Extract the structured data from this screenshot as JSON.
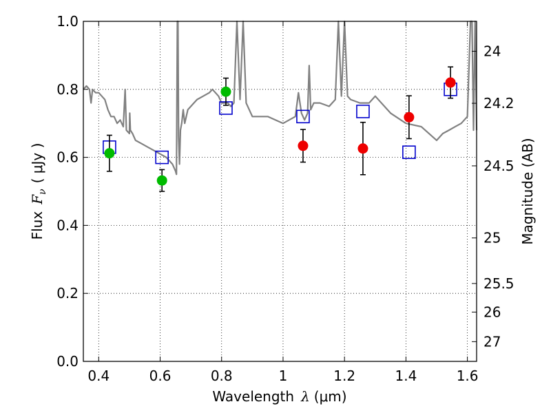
{
  "chart_data": {
    "type": "scatter",
    "xlabel": "Wavelength",
    "xlabel_symbol": "λ",
    "xlabel_unit": "(μm)",
    "ylabel": "Flux",
    "ylabel_symbol": "F",
    "ylabel_subscript": "ν",
    "ylabel_unit": "( μJy )",
    "ylabel_right": "Magnitude (AB)",
    "xlim": [
      0.35,
      1.63
    ],
    "ylim": [
      0.0,
      1.0
    ],
    "grid": true,
    "x_ticks": [
      0.4,
      0.6,
      0.8,
      1.0,
      1.2,
      1.4,
      1.6
    ],
    "x_tick_labels": [
      "0.4",
      "0.6",
      "0.8",
      "1",
      "1.2",
      "1.4",
      "1.6"
    ],
    "y_ticks": [
      0.0,
      0.2,
      0.4,
      0.6,
      0.8,
      1.0
    ],
    "y_tick_labels": [
      "0.0",
      "0.2",
      "0.4",
      "0.6",
      "0.8",
      "1.0"
    ],
    "right_ticks": [
      {
        "flux": 0.912,
        "label": "24"
      },
      {
        "flux": 0.759,
        "label": "24.2"
      },
      {
        "flux": 0.575,
        "label": "24.5"
      },
      {
        "flux": 0.363,
        "label": "25"
      },
      {
        "flux": 0.229,
        "label": "25.5"
      },
      {
        "flux": 0.145,
        "label": "26"
      },
      {
        "flux": 0.058,
        "label": "27"
      }
    ],
    "colors": {
      "model": "#808080",
      "green": "#00bb00",
      "red": "#ee0000",
      "model_photometry": "#0000cc",
      "errorbar": "#000000",
      "grid": "#000000"
    },
    "series": [
      {
        "name": "model spectrum",
        "kind": "line",
        "x": [
          0.35,
          0.36,
          0.37,
          0.375,
          0.38,
          0.39,
          0.4,
          0.41,
          0.42,
          0.43,
          0.44,
          0.45,
          0.46,
          0.47,
          0.48,
          0.486,
          0.49,
          0.5,
          0.501,
          0.503,
          0.51,
          0.52,
          0.54,
          0.56,
          0.58,
          0.6,
          0.62,
          0.64,
          0.645,
          0.65,
          0.653,
          0.656,
          0.658,
          0.66,
          0.663,
          0.666,
          0.67,
          0.675,
          0.68,
          0.69,
          0.7,
          0.72,
          0.74,
          0.76,
          0.77,
          0.78,
          0.79,
          0.8,
          0.82,
          0.83,
          0.84,
          0.85,
          0.86,
          0.87,
          0.88,
          0.9,
          0.92,
          0.95,
          1.0,
          1.04,
          1.05,
          1.06,
          1.07,
          1.08,
          1.085,
          1.09,
          1.1,
          1.12,
          1.15,
          1.17,
          1.18,
          1.19,
          1.2,
          1.21,
          1.22,
          1.25,
          1.28,
          1.3,
          1.35,
          1.4,
          1.45,
          1.5,
          1.52,
          1.54,
          1.56,
          1.58,
          1.6,
          1.61,
          1.615,
          1.62,
          1.625,
          1.63
        ],
        "y": [
          0.8,
          0.81,
          0.8,
          0.76,
          0.8,
          0.79,
          0.79,
          0.78,
          0.77,
          0.74,
          0.72,
          0.72,
          0.7,
          0.71,
          0.69,
          0.8,
          0.68,
          0.67,
          0.73,
          0.68,
          0.67,
          0.65,
          0.64,
          0.63,
          0.62,
          0.61,
          0.6,
          0.58,
          0.57,
          0.56,
          0.55,
          1.0,
          1.0,
          0.66,
          0.58,
          0.68,
          0.7,
          0.74,
          0.7,
          0.74,
          0.75,
          0.77,
          0.78,
          0.79,
          0.8,
          0.79,
          0.78,
          0.76,
          0.76,
          0.75,
          0.76,
          1.0,
          0.77,
          1.0,
          0.76,
          0.72,
          0.72,
          0.72,
          0.7,
          0.72,
          0.79,
          0.73,
          0.71,
          0.73,
          0.87,
          0.74,
          0.76,
          0.76,
          0.75,
          0.77,
          1.0,
          0.78,
          1.0,
          0.78,
          0.77,
          0.76,
          0.76,
          0.78,
          0.73,
          0.7,
          0.69,
          0.65,
          0.67,
          0.68,
          0.69,
          0.7,
          0.72,
          1.0,
          1.0,
          0.68,
          1.0,
          0.68
        ]
      },
      {
        "name": "observed (optical)",
        "kind": "points",
        "color_key": "green",
        "x": [
          0.435,
          0.606,
          0.814
        ],
        "y": [
          0.612,
          0.532,
          0.793
        ],
        "yerr": [
          0.053,
          0.032,
          0.04
        ]
      },
      {
        "name": "observed (near-IR)",
        "kind": "points",
        "color_key": "red",
        "x": [
          1.065,
          1.26,
          1.41,
          1.545
        ],
        "y": [
          0.634,
          0.626,
          0.718,
          0.82
        ],
        "yerr": [
          0.048,
          0.077,
          0.063,
          0.046
        ]
      },
      {
        "name": "model photometry",
        "kind": "squares",
        "color_key": "model_photometry",
        "x": [
          0.435,
          0.606,
          0.814,
          1.065,
          1.26,
          1.41,
          1.545
        ],
        "y": [
          0.63,
          0.6,
          0.745,
          0.72,
          0.735,
          0.615,
          0.8
        ]
      }
    ]
  }
}
